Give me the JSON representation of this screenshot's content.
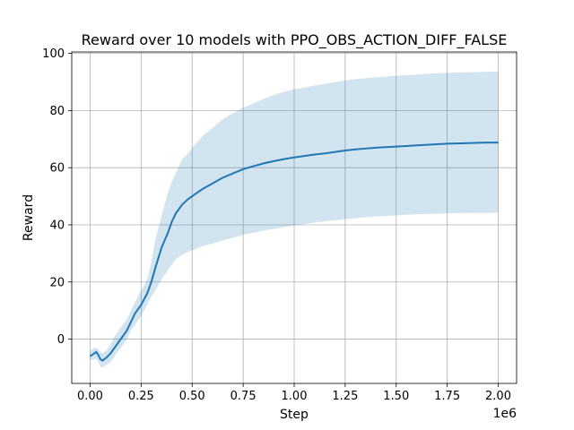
{
  "chart_data": {
    "type": "line",
    "title": "Reward over 10 models with PPO_OBS_ACTION_DIFF_FALSE",
    "xlabel": "Step",
    "ylabel": "Reward",
    "x_offset_label": "1e6",
    "xlim": [
      -0.09,
      2.09
    ],
    "ylim": [
      -15.5,
      100.5
    ],
    "xticks": [
      0.0,
      0.25,
      0.5,
      0.75,
      1.0,
      1.25,
      1.5,
      1.75,
      2.0
    ],
    "xtick_labels": [
      "0.00",
      "0.25",
      "0.50",
      "0.75",
      "1.00",
      "1.25",
      "1.50",
      "1.75",
      "2.00"
    ],
    "yticks": [
      0,
      20,
      40,
      60,
      80,
      100
    ],
    "ytick_labels": [
      "0",
      "20",
      "40",
      "60",
      "80",
      "100"
    ],
    "grid": true,
    "colors": {
      "mean_line": "#1f77b4",
      "band_fill": "#1f77b4",
      "grid": "#b0b0b0"
    },
    "series": [
      {
        "kind": "mean",
        "x": [
          0.0,
          0.02,
          0.03,
          0.04,
          0.05,
          0.06,
          0.07,
          0.08,
          0.1,
          0.12,
          0.15,
          0.18,
          0.2,
          0.22,
          0.25,
          0.28,
          0.3,
          0.32,
          0.35,
          0.38,
          0.4,
          0.42,
          0.45,
          0.48,
          0.5,
          0.55,
          0.6,
          0.65,
          0.7,
          0.75,
          0.8,
          0.85,
          0.9,
          0.95,
          1.0,
          1.05,
          1.1,
          1.15,
          1.2,
          1.25,
          1.3,
          1.35,
          1.4,
          1.45,
          1.5,
          1.55,
          1.6,
          1.65,
          1.7,
          1.75,
          1.8,
          1.85,
          1.9,
          1.95,
          2.0
        ],
        "y": [
          -6,
          -5,
          -4.5,
          -5.5,
          -7,
          -7.5,
          -7,
          -6.5,
          -5,
          -3,
          0,
          3,
          6,
          9,
          12,
          16,
          20,
          25,
          32,
          37,
          41,
          44,
          47,
          49,
          50,
          52.5,
          54.5,
          56.5,
          58,
          59.5,
          60.5,
          61.5,
          62.3,
          63,
          63.6,
          64.1,
          64.6,
          65,
          65.5,
          66,
          66.4,
          66.7,
          67,
          67.2,
          67.4,
          67.6,
          67.8,
          68,
          68.2,
          68.4,
          68.5,
          68.6,
          68.7,
          68.8,
          68.8
        ]
      },
      {
        "kind": "upper",
        "x": [
          0.0,
          0.02,
          0.03,
          0.04,
          0.05,
          0.06,
          0.07,
          0.08,
          0.1,
          0.12,
          0.15,
          0.18,
          0.2,
          0.22,
          0.25,
          0.28,
          0.3,
          0.32,
          0.35,
          0.38,
          0.4,
          0.42,
          0.45,
          0.48,
          0.5,
          0.55,
          0.6,
          0.65,
          0.7,
          0.75,
          0.8,
          0.85,
          0.9,
          0.95,
          1.0,
          1.05,
          1.1,
          1.15,
          1.2,
          1.25,
          1.3,
          1.35,
          1.4,
          1.45,
          1.5,
          1.55,
          1.6,
          1.65,
          1.7,
          1.75,
          1.8,
          1.85,
          1.9,
          1.95,
          2.0
        ],
        "y": [
          -4,
          -3,
          -3,
          -3.5,
          -4.5,
          -5,
          -4.5,
          -4,
          -2,
          1,
          4,
          7,
          10,
          13,
          17,
          21,
          27,
          35,
          43,
          51,
          55,
          58,
          63,
          65,
          67,
          71,
          74,
          77,
          79,
          81,
          82.5,
          84,
          85.5,
          86.5,
          87.5,
          88,
          88.8,
          89.3,
          90,
          90.5,
          91,
          91.3,
          91.6,
          91.9,
          92.2,
          92.4,
          92.6,
          92.8,
          93,
          93.2,
          93.3,
          93.4,
          93.5,
          93.6,
          93.7
        ]
      },
      {
        "kind": "lower",
        "x": [
          0.0,
          0.02,
          0.03,
          0.04,
          0.05,
          0.06,
          0.07,
          0.08,
          0.1,
          0.12,
          0.15,
          0.18,
          0.2,
          0.22,
          0.25,
          0.28,
          0.3,
          0.32,
          0.35,
          0.38,
          0.4,
          0.42,
          0.45,
          0.48,
          0.5,
          0.55,
          0.6,
          0.65,
          0.7,
          0.75,
          0.8,
          0.85,
          0.9,
          0.95,
          1.0,
          1.05,
          1.1,
          1.15,
          1.2,
          1.25,
          1.3,
          1.35,
          1.4,
          1.45,
          1.5,
          1.55,
          1.6,
          1.65,
          1.7,
          1.75,
          1.8,
          1.85,
          1.9,
          1.95,
          2.0
        ],
        "y": [
          -7.5,
          -7,
          -7,
          -8,
          -9.5,
          -10,
          -9.5,
          -9,
          -8,
          -6,
          -3,
          0,
          3,
          5,
          8,
          12,
          15,
          17,
          21,
          24,
          26,
          28,
          29.5,
          30.5,
          31,
          32.5,
          33.5,
          34.5,
          35.5,
          36.5,
          37.2,
          38,
          38.6,
          39.2,
          39.8,
          40.3,
          40.8,
          41.2,
          41.6,
          42,
          42.3,
          42.6,
          42.9,
          43.1,
          43.3,
          43.5,
          43.7,
          43.8,
          43.9,
          44,
          44.1,
          44.1,
          44.2,
          44.2,
          44.3
        ]
      }
    ]
  }
}
